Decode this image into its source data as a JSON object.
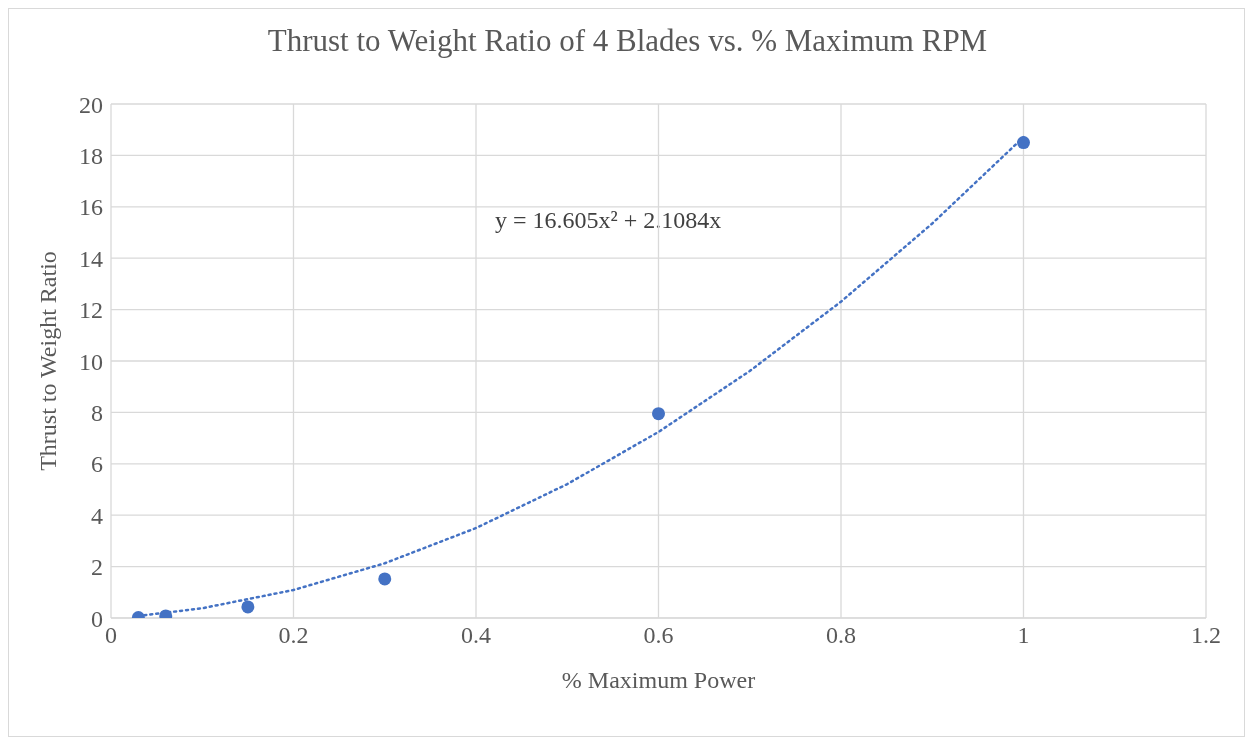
{
  "chart_data": {
    "type": "scatter",
    "title": "Thrust to Weight Ratio of 4 Blades vs. % Maximum RPM",
    "xlabel": "% Maximum Power",
    "ylabel": "Thrust to Weight Ratio",
    "series": [
      {
        "color": "#4472c4",
        "marker": "circle",
        "x": [
          0.03,
          0.06,
          0.15,
          0.3,
          0.6,
          1.0
        ],
        "values": [
          0.02,
          0.08,
          0.43,
          1.52,
          7.95,
          18.5
        ]
      },
      {
        "type": "line",
        "color": "#4472c4",
        "marker": "none",
        "line_style": "dotted",
        "x": [
          0.03,
          0.1,
          0.2,
          0.3,
          0.4,
          0.5,
          0.6,
          0.7,
          0.8,
          0.9,
          1.0
        ],
        "values": [
          0.08,
          0.38,
          1.09,
          2.13,
          3.5,
          5.21,
          7.24,
          9.61,
          12.31,
          15.35,
          18.71
        ]
      }
    ],
    "annotations": [
      "y = 16.605x² + 2.1084x"
    ],
    "xlim": [
      0,
      1.2
    ],
    "xticks": [
      0,
      0.2,
      0.4,
      0.6,
      0.8,
      1,
      1.2
    ],
    "ylim": [
      0,
      20
    ],
    "yticks": [
      0,
      2,
      4,
      6,
      8,
      10,
      12,
      14,
      16,
      18,
      20
    ],
    "grid": true
  }
}
